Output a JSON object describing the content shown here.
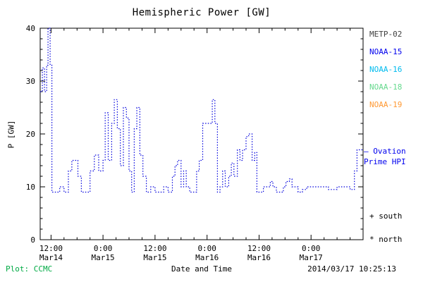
{
  "chart_data": {
    "type": "line",
    "style": "step, dotted",
    "title": "Hemispheric Power [GW]",
    "xlabel": "Date and Time",
    "ylabel": "P [GW]",
    "ylim": [
      0,
      40
    ],
    "xlim_hours_from_mar14_0000": [
      9.5,
      84
    ],
    "y_major_ticks": [
      0,
      10,
      20,
      30,
      40
    ],
    "y_minor_step": 2,
    "x_major_ticks": [
      {
        "hour": 12,
        "time": "12:00",
        "date": "Mar14"
      },
      {
        "hour": 24,
        "time": "0:00",
        "date": "Mar15"
      },
      {
        "hour": 36,
        "time": "12:00",
        "date": "Mar15"
      },
      {
        "hour": 48,
        "time": "0:00",
        "date": "Mar16"
      },
      {
        "hour": 60,
        "time": "12:00",
        "date": "Mar16"
      },
      {
        "hour": 72,
        "time": "0:00",
        "date": "Mar17"
      }
    ],
    "x_minor_step_hours": 3,
    "line_color": "#0000dd",
    "grid": false,
    "series": [
      {
        "name": "Ovation Prime HPI",
        "points_hour_gw": [
          [
            9.5,
            28
          ],
          [
            10.0,
            32.5
          ],
          [
            10.5,
            28
          ],
          [
            11.0,
            33
          ],
          [
            11.3,
            40
          ],
          [
            11.8,
            33
          ],
          [
            12.2,
            9
          ],
          [
            13.0,
            9
          ],
          [
            14.0,
            10
          ],
          [
            15.0,
            9
          ],
          [
            16.0,
            13
          ],
          [
            16.8,
            15
          ],
          [
            17.6,
            15
          ],
          [
            18.2,
            12
          ],
          [
            19.0,
            9
          ],
          [
            20.0,
            9
          ],
          [
            21.0,
            13
          ],
          [
            22.0,
            16
          ],
          [
            23.0,
            13
          ],
          [
            24.0,
            15
          ],
          [
            24.5,
            24
          ],
          [
            25.2,
            15
          ],
          [
            26.0,
            22
          ],
          [
            26.6,
            26.5
          ],
          [
            27.3,
            21
          ],
          [
            28.0,
            14
          ],
          [
            28.7,
            25
          ],
          [
            29.4,
            23
          ],
          [
            30.0,
            13
          ],
          [
            30.6,
            9
          ],
          [
            31.2,
            21
          ],
          [
            31.8,
            25
          ],
          [
            32.5,
            16
          ],
          [
            33.2,
            12
          ],
          [
            34.0,
            9
          ],
          [
            35.0,
            10
          ],
          [
            36.0,
            9
          ],
          [
            37.0,
            9
          ],
          [
            38.0,
            10
          ],
          [
            39.0,
            9
          ],
          [
            40.0,
            12
          ],
          [
            40.6,
            14
          ],
          [
            41.2,
            15
          ],
          [
            42.0,
            10
          ],
          [
            42.6,
            13
          ],
          [
            43.2,
            10
          ],
          [
            44.0,
            9
          ],
          [
            45.0,
            9
          ],
          [
            45.6,
            13
          ],
          [
            46.2,
            15
          ],
          [
            47.0,
            22
          ],
          [
            48.5,
            22
          ],
          [
            49.2,
            26.5
          ],
          [
            49.8,
            22
          ],
          [
            50.4,
            9
          ],
          [
            51.0,
            10
          ],
          [
            51.6,
            13
          ],
          [
            52.2,
            10
          ],
          [
            53.0,
            12
          ],
          [
            53.6,
            14.5
          ],
          [
            54.2,
            12
          ],
          [
            55.0,
            17
          ],
          [
            55.6,
            15
          ],
          [
            56.2,
            17
          ],
          [
            57.0,
            19.5
          ],
          [
            57.6,
            20
          ],
          [
            58.4,
            15
          ],
          [
            59.0,
            16.5
          ],
          [
            59.5,
            9
          ],
          [
            60.2,
            9
          ],
          [
            61.0,
            10
          ],
          [
            62.0,
            10
          ],
          [
            62.6,
            11
          ],
          [
            63.2,
            10
          ],
          [
            64.0,
            9
          ],
          [
            65.0,
            9
          ],
          [
            65.6,
            10
          ],
          [
            66.2,
            11
          ],
          [
            67.0,
            11.5
          ],
          [
            67.6,
            10
          ],
          [
            68.2,
            10
          ],
          [
            69.0,
            9
          ],
          [
            70.0,
            9.5
          ],
          [
            71.0,
            10
          ],
          [
            72.0,
            10
          ],
          [
            74.0,
            10
          ],
          [
            76.0,
            9.5
          ],
          [
            78.0,
            10
          ],
          [
            80.0,
            10
          ],
          [
            81.0,
            9.5
          ],
          [
            82.0,
            13
          ],
          [
            82.6,
            17
          ],
          [
            83.5,
            17
          ]
        ]
      }
    ]
  },
  "legend": {
    "satellites": [
      {
        "label": "METP-02",
        "color": "#404040"
      },
      {
        "label": "NOAA-15",
        "color": "#0000ee"
      },
      {
        "label": "NOAA-16",
        "color": "#00bbee"
      },
      {
        "label": "NOAA-18",
        "color": "#66d98e"
      },
      {
        "label": "NOAA-19",
        "color": "#ff9933"
      }
    ],
    "ovation": {
      "marker": "—",
      "line1": "Ovation",
      "line2": "Prime HPI",
      "color": "#0000ee"
    },
    "markers": [
      {
        "symbol": "+",
        "label": "south"
      },
      {
        "symbol": "*",
        "label": "north"
      }
    ]
  },
  "footer": {
    "plot_credit": "Plot: CCMC",
    "plot_credit_color": "#00aa44",
    "timestamp": "2014/03/17 10:25:13"
  }
}
